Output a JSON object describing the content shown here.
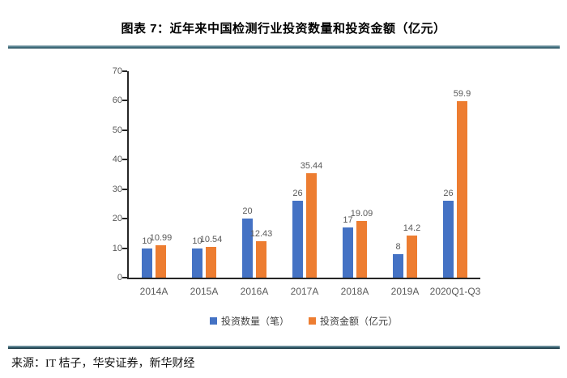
{
  "figure": {
    "title": "图表 7：近年来中国检测行业投资数量和投资金额（亿元）",
    "source": "来源：IT 桔子，华安证券，新华财经"
  },
  "chart_data": {
    "type": "bar",
    "title": "近年来中国检测行业投资数量和投资金额（亿元）",
    "categories": [
      "2014A",
      "2015A",
      "2016A",
      "2017A",
      "2018A",
      "2019A",
      "2020Q1-Q3"
    ],
    "series": [
      {
        "name": "投资数量（笔）",
        "color": "#4472C4",
        "values": [
          10,
          10,
          20,
          26,
          17,
          8,
          26
        ]
      },
      {
        "name": "投资金额（亿元）",
        "color": "#ED7D31",
        "values": [
          10.99,
          10.54,
          12.43,
          35.44,
          19.09,
          14.2,
          59.9
        ]
      }
    ],
    "xlabel": "",
    "ylabel": "",
    "ylim": [
      0,
      70
    ],
    "yticks": [
      0,
      10,
      20,
      30,
      40,
      50,
      60,
      70
    ],
    "grid": false,
    "legend_position": "bottom",
    "colors": {
      "axis": "#262626",
      "tick_label": "#595959",
      "data_label": "#595959",
      "divider_teal": "#2e5f70"
    }
  }
}
